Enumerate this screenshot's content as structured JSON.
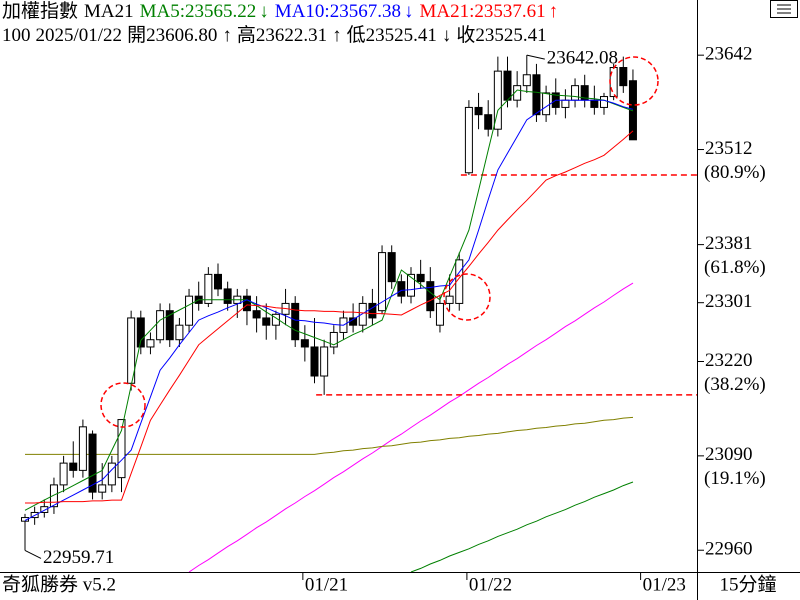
{
  "header": {
    "title": "加權指數",
    "indicator": "MA21",
    "info": [
      "100",
      "2025/01/22",
      "開23606.80",
      "↑",
      "高23622.31",
      "↑",
      "低23525.41",
      "↓",
      "收23525.41"
    ]
  },
  "chart_data": {
    "type": "candlestick",
    "categories": [
      null,
      null,
      null,
      null,
      null,
      null,
      null,
      null,
      null,
      null,
      null,
      null,
      null,
      null,
      null,
      null,
      null,
      null,
      null,
      null,
      null,
      null,
      null,
      null,
      null,
      null,
      null,
      null,
      null,
      "01/21",
      null,
      null,
      null,
      null,
      null,
      null,
      null,
      null,
      null,
      null,
      null,
      null,
      null,
      null,
      null,
      null,
      "01/22",
      null,
      null,
      null,
      null,
      null,
      null,
      null,
      null,
      null,
      null,
      null,
      null,
      null,
      null,
      null,
      null,
      null
    ],
    "x_edge_label": "01/23",
    "open": [
      23000,
      23005,
      23012,
      23020,
      23050,
      23080,
      23070,
      23120,
      23040,
      23050,
      23060,
      23190,
      23280,
      23240,
      23250,
      23290,
      23250,
      23270,
      23310,
      23300,
      23340,
      23320,
      23300,
      23310,
      23290,
      23280,
      23270,
      23285,
      23300,
      23250,
      23240,
      23200,
      23240,
      23260,
      23280,
      23270,
      23300,
      23290,
      23370,
      23330,
      23310,
      23340,
      23330,
      23270,
      23300,
      23300,
      23480,
      23570,
      23560,
      23540,
      23620,
      23580,
      23600,
      23615,
      23560,
      23590,
      23570,
      23580,
      23600,
      23580,
      23570,
      23585,
      23625,
      23606.8
    ],
    "high": [
      23010,
      23020,
      23030,
      23060,
      23090,
      23110,
      23140,
      23125,
      23080,
      23090,
      23140,
      23290,
      23290,
      23260,
      23300,
      23300,
      23280,
      23320,
      23330,
      23350,
      23355,
      23330,
      23320,
      23320,
      23310,
      23300,
      23290,
      23320,
      23310,
      23270,
      23280,
      23250,
      23270,
      23290,
      23300,
      23310,
      23320,
      23380,
      23380,
      23340,
      23350,
      23360,
      23350,
      23310,
      23340,
      23370,
      23580,
      23590,
      23580,
      23640,
      23640,
      23620,
      23642.08,
      23630,
      23600,
      23610,
      23595,
      23610,
      23615,
      23600,
      23590,
      23630,
      23640,
      23622.31
    ],
    "low": [
      22959.71,
      22995,
      23005,
      23010,
      23040,
      23060,
      23060,
      23030,
      23030,
      23040,
      23040,
      23180,
      23230,
      23230,
      23245,
      23240,
      23240,
      23260,
      23290,
      23295,
      23310,
      23290,
      23280,
      23270,
      23260,
      23250,
      23250,
      23270,
      23240,
      23220,
      23190,
      23174,
      23230,
      23250,
      23260,
      23260,
      23270,
      23285,
      23320,
      23300,
      23300,
      23320,
      23280,
      23260,
      23290,
      23290,
      23477,
      23540,
      23530,
      23530,
      23570,
      23570,
      23590,
      23550,
      23550,
      23560,
      23555,
      23570,
      23570,
      23560,
      23560,
      23580,
      23590,
      23525.41
    ],
    "close": [
      23005,
      23012,
      23020,
      23050,
      23080,
      23070,
      23130,
      23040,
      23050,
      23080,
      23140,
      23280,
      23240,
      23250,
      23290,
      23250,
      23270,
      23310,
      23300,
      23340,
      23320,
      23300,
      23310,
      23290,
      23280,
      23270,
      23285,
      23300,
      23250,
      23240,
      23200,
      23240,
      23260,
      23280,
      23270,
      23300,
      23280,
      23370,
      23330,
      23310,
      23340,
      23330,
      23290,
      23300,
      23310,
      23360,
      23570,
      23560,
      23540,
      23620,
      23580,
      23600,
      23615,
      23560,
      23590,
      23570,
      23580,
      23600,
      23580,
      23570,
      23585,
      23625,
      23600,
      23525.41
    ],
    "series": [
      {
        "name": "MA5:23565.22",
        "trend": "↓",
        "color": "#008000",
        "values": [
          23015,
          23022,
          23029,
          23036,
          23042,
          23049,
          23056,
          23063,
          23070,
          23098,
          23125,
          23187,
          23249,
          23263,
          23277,
          23284,
          23291,
          23298,
          23305,
          23305,
          23305,
          23305,
          23305,
          23305,
          23297,
          23288,
          23280,
          23271,
          23263,
          23258,
          23253,
          23248,
          23243,
          23250,
          23257,
          23263,
          23270,
          23277,
          23312,
          23346,
          23336,
          23326,
          23315,
          23305,
          23337,
          23369,
          23401,
          23456,
          23511,
          23566,
          23580,
          23594,
          23592,
          23591,
          23589,
          23587,
          23586,
          23585,
          23583,
          23582,
          23580,
          23575,
          23570,
          23565.22
        ]
      },
      {
        "name": "MA10:23567.38",
        "trend": "↓",
        "color": "#0000ff",
        "values": [
          23001,
          23008,
          23015,
          23022,
          23029,
          23036,
          23043,
          23050,
          23057,
          23071,
          23084,
          23098,
          23135,
          23171,
          23208,
          23225,
          23243,
          23260,
          23277,
          23283,
          23288,
          23294,
          23299,
          23305,
          23299,
          23294,
          23288,
          23283,
          23277,
          23276,
          23274,
          23273,
          23271,
          23270,
          23278,
          23286,
          23294,
          23302,
          23310,
          23318,
          23319,
          23321,
          23322,
          23324,
          23325,
          23343,
          23360,
          23401,
          23443,
          23484,
          23507,
          23530,
          23553,
          23562,
          23571,
          23580,
          23580,
          23580,
          23580,
          23580,
          23580,
          23576,
          23571,
          23567.38
        ]
      },
      {
        "name": "MA21:23537.61",
        "trend": "↑",
        "color": "#ff0000",
        "values": [
          23025,
          23025,
          23026,
          23026,
          23027,
          23027,
          23027,
          23028,
          23028,
          23029,
          23029,
          23066,
          23102,
          23139,
          23160,
          23181,
          23201,
          23222,
          23243,
          23254,
          23265,
          23276,
          23287,
          23298,
          23297,
          23296,
          23294,
          23293,
          23291,
          23290,
          23290,
          23289,
          23289,
          23288,
          23288,
          23287,
          23286,
          23286,
          23285,
          23284,
          23291,
          23298,
          23304,
          23311,
          23318,
          23335,
          23351,
          23368,
          23384,
          23401,
          23415,
          23429,
          23442,
          23456,
          23470,
          23476,
          23481,
          23487,
          23493,
          23498,
          23504,
          23515,
          23526,
          23537.61
        ]
      }
    ],
    "long_series": [
      {
        "color": "#ff00ff",
        "values": [
          null,
          null,
          null,
          null,
          null,
          null,
          null,
          null,
          null,
          null,
          null,
          null,
          null,
          null,
          null,
          null,
          null,
          22930,
          22939,
          22947,
          22956,
          22965,
          22973,
          22982,
          22991,
          22999,
          23008,
          23017,
          23025,
          23034,
          23042,
          23051,
          23060,
          23068,
          23077,
          23086,
          23094,
          23103,
          23112,
          23120,
          23129,
          23138,
          23146,
          23155,
          23164,
          23172,
          23181,
          23190,
          23198,
          23207,
          23216,
          23224,
          23233,
          23242,
          23250,
          23259,
          23268,
          23276,
          23285,
          23294,
          23302,
          23311,
          23320,
          23328
        ]
      },
      {
        "color": "#808000",
        "values": [
          23092,
          23092,
          23092,
          23092,
          23092,
          23092,
          23092,
          23092,
          23092,
          23092,
          23092,
          23092,
          23092,
          23092,
          23092,
          23092,
          23092,
          23092,
          23092,
          23092,
          23092,
          23092,
          23092,
          23092,
          23092,
          23092,
          23092,
          23092,
          23092,
          23092,
          23092,
          23094,
          23095,
          23097,
          23098,
          23100,
          23101,
          23103,
          23104,
          23106,
          23108,
          23109,
          23111,
          23112,
          23114,
          23115,
          23117,
          23118,
          23120,
          23121,
          23123,
          23125,
          23126,
          23128,
          23129,
          23131,
          23132,
          23134,
          23135,
          23137,
          23139,
          23140,
          23142,
          23143
        ]
      },
      {
        "color": "#008000",
        "values": [
          null,
          null,
          null,
          null,
          null,
          null,
          null,
          null,
          null,
          null,
          null,
          null,
          null,
          null,
          null,
          null,
          null,
          null,
          null,
          null,
          null,
          null,
          null,
          null,
          null,
          null,
          null,
          null,
          null,
          null,
          null,
          null,
          null,
          null,
          null,
          null,
          null,
          null,
          null,
          null,
          22930,
          22935,
          22941,
          22946,
          22952,
          22957,
          22962,
          22968,
          22973,
          22979,
          22984,
          22989,
          22995,
          23000,
          23006,
          23011,
          23016,
          23022,
          23027,
          23033,
          23038,
          23043,
          23049,
          23054
        ]
      }
    ],
    "reference_lines": [
      {
        "value": 23477,
        "color": "#ff0000",
        "from": 46
      },
      {
        "value": 23174,
        "color": "#ff0000",
        "from": 31
      }
    ],
    "ylim": [
      22930,
      23718
    ],
    "yticks": [
      23642,
      23512,
      23381,
      23301,
      23220,
      23090,
      22960
    ],
    "fib_labels": [
      {
        "value": 23512,
        "label": "(80.9%)"
      },
      {
        "value": 23381,
        "label": "(61.8%)"
      },
      {
        "value": 23220,
        "label": "(38.2%)"
      },
      {
        "value": 23090,
        "label": "(19.1%)"
      }
    ]
  },
  "footer": {
    "brand": "奇狐勝券 v5.2",
    "period": "15分鐘"
  }
}
